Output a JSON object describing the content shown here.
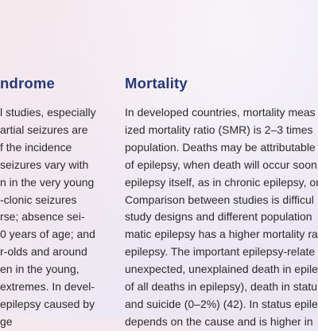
{
  "left_section": {
    "heading": "ndrome",
    "lines": [
      "l studies, especially",
      "artial seizures are",
      "f the incidence",
      "seizures vary with",
      "n in the very young",
      "-clonic seizures",
      "rse; absence sei-",
      "0 years of age; and",
      "r-olds and around",
      "en in the young,",
      " extremes. In devel-",
      "epilepsy caused by",
      "ge"
    ]
  },
  "right_section": {
    "heading": "Mortality",
    "lines": [
      "In developed countries, mortality meas",
      "ized mortality ratio (SMR) is 2–3 times",
      "population. Deaths may be attributable",
      "of epilepsy, when death will occur soon",
      "epilepsy itself, as in chronic epilepsy, or",
      "Comparison between studies is difficul",
      "study designs and different population",
      "matic epilepsy has a higher mortality ra",
      "epilepsy. The important epilepsy-relate",
      "unexpected, unexplained death in epile",
      "of all deaths in epilepsy), death in statu",
      "and suicide (0–2%) (42). In status epile",
      "depends on the cause and is higher in"
    ]
  }
}
